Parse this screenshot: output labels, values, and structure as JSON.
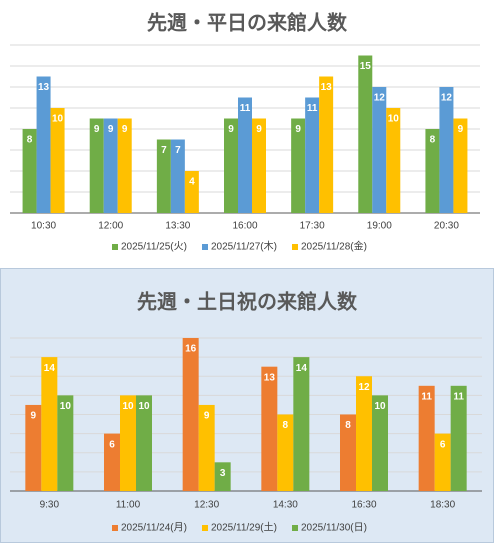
{
  "chart_data": [
    {
      "type": "bar",
      "title": "先週・平日の来館人数",
      "categories": [
        "10:30",
        "12:00",
        "13:30",
        "16:00",
        "17:30",
        "19:00",
        "20:30"
      ],
      "series": [
        {
          "name": "2025/11/25(火)",
          "color": "#70ad47",
          "values": [
            8,
            9,
            7,
            9,
            9,
            15,
            8
          ]
        },
        {
          "name": "2025/11/27(木)",
          "color": "#5b9bd5",
          "values": [
            13,
            9,
            7,
            11,
            11,
            12,
            12
          ]
        },
        {
          "name": "2025/11/28(金)",
          "color": "#ffc000",
          "values": [
            10,
            9,
            4,
            9,
            13,
            10,
            9
          ]
        }
      ],
      "ylim": [
        0,
        16
      ],
      "yticks": [
        0,
        2,
        4,
        6,
        8,
        10,
        12,
        14,
        16
      ],
      "grid": true,
      "legend": "bottom"
    },
    {
      "type": "bar",
      "title": "先週・土日祝の来館人数",
      "categories": [
        "9:30",
        "11:00",
        "12:30",
        "14:30",
        "16:30",
        "18:30"
      ],
      "series": [
        {
          "name": "2025/11/24(月)",
          "color": "#ed7d31",
          "values": [
            9,
            6,
            16,
            13,
            8,
            11
          ]
        },
        {
          "name": "2025/11/29(土)",
          "color": "#ffc000",
          "values": [
            14,
            10,
            9,
            8,
            12,
            6
          ]
        },
        {
          "name": "2025/11/30(日)",
          "color": "#70ad47",
          "values": [
            10,
            10,
            3,
            14,
            10,
            11
          ]
        }
      ],
      "ylim": [
        0,
        16
      ],
      "yticks": [
        0,
        2,
        4,
        6,
        8,
        10,
        12,
        14,
        16
      ],
      "grid": true,
      "legend": "bottom"
    }
  ]
}
